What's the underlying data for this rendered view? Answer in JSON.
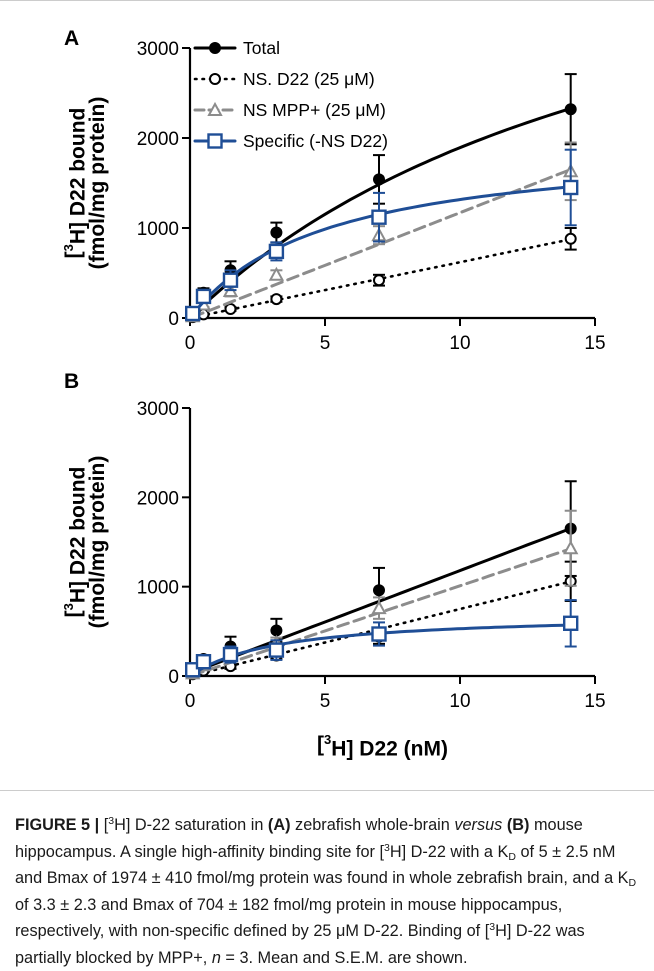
{
  "chart_data": [
    {
      "panel": "A",
      "type": "scatter",
      "xlim": [
        0,
        15
      ],
      "ylim": [
        0,
        3000
      ],
      "xticks": [
        "0",
        "5",
        "10",
        "15"
      ],
      "yticks": [
        "0",
        "1000",
        "2000",
        "3000"
      ],
      "ylabel_line1": "[3H] D22 bound",
      "ylabel_line2": "(fmol/mg protein)",
      "legend_position": "top-left",
      "series": [
        {
          "name": "Total",
          "color": "#000000",
          "marker": "circle-filled",
          "line": "solid",
          "x": [
            0.1,
            0.5,
            1.5,
            3.2,
            7,
            14.1
          ],
          "y": [
            60,
            280,
            530,
            950,
            1540,
            2320
          ],
          "err": [
            20,
            50,
            100,
            110,
            270,
            390
          ],
          "fit": "hyperbola",
          "fit_bmax": 5300,
          "fit_kd": 18
        },
        {
          "name": "NS. D22 (25 μM)",
          "color": "#000000",
          "marker": "circle-open",
          "line": "dotted",
          "x": [
            0.1,
            0.5,
            1.5,
            3.2,
            7,
            14.1
          ],
          "y": [
            10,
            40,
            100,
            210,
            420,
            880
          ],
          "err": [
            5,
            10,
            20,
            30,
            60,
            120
          ],
          "fit": "linear",
          "fit_slope": 62
        },
        {
          "name": "NS  MPP+ (25 μM)",
          "color": "#8c8c8c",
          "marker": "triangle-open",
          "line": "dashed",
          "x": [
            0.1,
            0.5,
            1.5,
            3.2,
            7,
            14.1
          ],
          "y": [
            20,
            150,
            300,
            480,
            920,
            1630
          ],
          "err": [
            10,
            30,
            60,
            50,
            100,
            320
          ],
          "fit": "linear",
          "fit_slope": 117
        },
        {
          "name": "Specific (-NS D22)",
          "color": "#1f4e96",
          "marker": "square-open",
          "line": "solid",
          "x": [
            0.1,
            0.5,
            1.5,
            3.2,
            7,
            14.1
          ],
          "y": [
            50,
            240,
            420,
            740,
            1120,
            1450
          ],
          "err": [
            20,
            50,
            110,
            100,
            270,
            420
          ],
          "fit": "hyperbola",
          "fit_bmax": 1974,
          "fit_kd": 5
        }
      ]
    },
    {
      "panel": "B",
      "type": "scatter",
      "xlim": [
        0,
        15
      ],
      "ylim": [
        0,
        3000
      ],
      "xticks": [
        "0",
        "5",
        "10",
        "15"
      ],
      "yticks": [
        "0",
        "1000",
        "2000",
        "3000"
      ],
      "ylabel_line1": "[3H] D22 bound",
      "ylabel_line2": "(fmol/mg protein)",
      "xlabel": "[3H] D22 (nM)",
      "series": [
        {
          "name": "Total",
          "color": "#000000",
          "marker": "circle-filled",
          "line": "solid",
          "x": [
            0.1,
            0.5,
            1.5,
            3.2,
            7,
            14.1
          ],
          "y": [
            70,
            190,
            330,
            510,
            960,
            1650
          ],
          "err": [
            20,
            40,
            110,
            130,
            250,
            530
          ],
          "fit": "linear",
          "fit_slope": 115,
          "fit_intercept": 30
        },
        {
          "name": "NS. D22 (25 μM)",
          "color": "#000000",
          "marker": "circle-open",
          "line": "dotted",
          "x": [
            0.1,
            0.5,
            1.5,
            3.2,
            7,
            14.1
          ],
          "y": [
            20,
            60,
            110,
            230,
            440,
            1060
          ],
          "err": [
            5,
            15,
            30,
            40,
            80,
            220
          ],
          "fit": "linear",
          "fit_slope": 75
        },
        {
          "name": "NS  MPP+ (25 μM)",
          "color": "#8c8c8c",
          "marker": "triangle-open",
          "line": "dashed",
          "x": [
            0.1,
            0.5,
            1.5,
            3.2,
            7,
            14.1
          ],
          "y": [
            30,
            120,
            250,
            370,
            760,
            1430
          ],
          "err": [
            10,
            30,
            60,
            60,
            120,
            420
          ],
          "fit": "linear",
          "fit_slope": 101
        },
        {
          "name": "Specific (-NS D22)",
          "color": "#1f4e96",
          "marker": "square-open",
          "line": "solid",
          "x": [
            0.1,
            0.5,
            1.5,
            3.2,
            7,
            14.1
          ],
          "y": [
            70,
            160,
            240,
            290,
            470,
            590
          ],
          "err": [
            20,
            40,
            90,
            110,
            130,
            260
          ],
          "fit": "hyperbola",
          "fit_bmax": 704,
          "fit_kd": 3.3
        }
      ]
    }
  ],
  "caption": {
    "figure_label": "FIGURE 5 |",
    "h_sup": "3",
    "t1": "H] D-22 saturation in ",
    "a_label": "(A)",
    "t2": " zebrafish whole-brain ",
    "versus": "versus",
    "b_label": "(B)",
    "t3": " mouse hippocampus. A single high-affinity binding site for [",
    "t4": "H] D-22 with a K",
    "kd_sub": "D",
    "t5": " of 5 ± 2.5 nM and Bmax of 1974 ± 410 fmol/mg protein was found in whole zebrafish brain, and a K",
    "t6": " of 3.3 ± 2.3 and Bmax of 704 ± 182 fmol/mg protein in mouse hippocampus, respectively, with non-specific defined by 25 μM D-22. Binding of [",
    "t7": "H] D-22 was partially blocked by MPP+, ",
    "n_italic": "n",
    "t8": " = 3. Mean and S.E.M. are shown."
  }
}
